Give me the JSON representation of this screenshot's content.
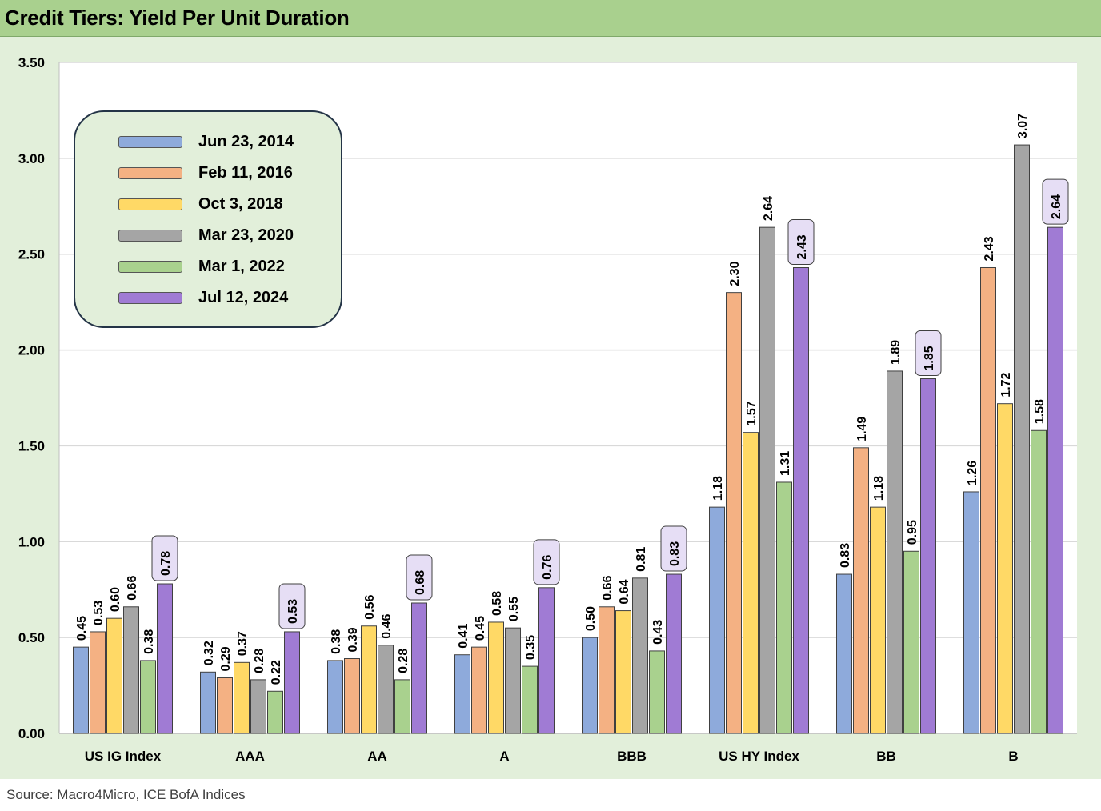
{
  "title": "Credit Tiers: Yield Per Unit Duration",
  "source": "Source: Macro4Micro, ICE BofA Indices",
  "chart_data": {
    "type": "bar",
    "title": "Credit Tiers: Yield Per Unit Duration",
    "categories": [
      "US IG Index",
      "AAA",
      "AA",
      "A",
      "BBB",
      "US HY Index",
      "BB",
      "B"
    ],
    "ylim": [
      0,
      3.5
    ],
    "y_ticks": [
      "0.00",
      "0.50",
      "1.00",
      "1.50",
      "2.00",
      "2.50",
      "3.00",
      "3.50"
    ],
    "grid": true,
    "legend_position": "top-left",
    "series": [
      {
        "name": "Jun 23, 2014",
        "color": "#8eaadb",
        "values": [
          0.45,
          0.32,
          0.38,
          0.41,
          0.5,
          1.18,
          0.83,
          1.26
        ]
      },
      {
        "name": "Feb 11, 2016",
        "color": "#f4b183",
        "values": [
          0.53,
          0.29,
          0.39,
          0.45,
          0.66,
          2.3,
          1.49,
          2.43
        ]
      },
      {
        "name": "Oct 3, 2018",
        "color": "#ffd966",
        "values": [
          0.6,
          0.37,
          0.56,
          0.58,
          0.64,
          1.57,
          1.18,
          1.72
        ]
      },
      {
        "name": "Mar 23, 2020",
        "color": "#a5a5a5",
        "values": [
          0.66,
          0.28,
          0.46,
          0.55,
          0.81,
          2.64,
          1.89,
          3.07
        ]
      },
      {
        "name": "Mar 1, 2022",
        "color": "#a9d18e",
        "values": [
          0.38,
          0.22,
          0.28,
          0.35,
          0.43,
          1.31,
          0.95,
          1.58
        ]
      },
      {
        "name": "Jul 12, 2024",
        "color": "#a07bd4",
        "values": [
          0.78,
          0.53,
          0.68,
          0.76,
          0.83,
          2.43,
          1.85,
          2.64
        ],
        "labels_boxed": true
      }
    ]
  }
}
